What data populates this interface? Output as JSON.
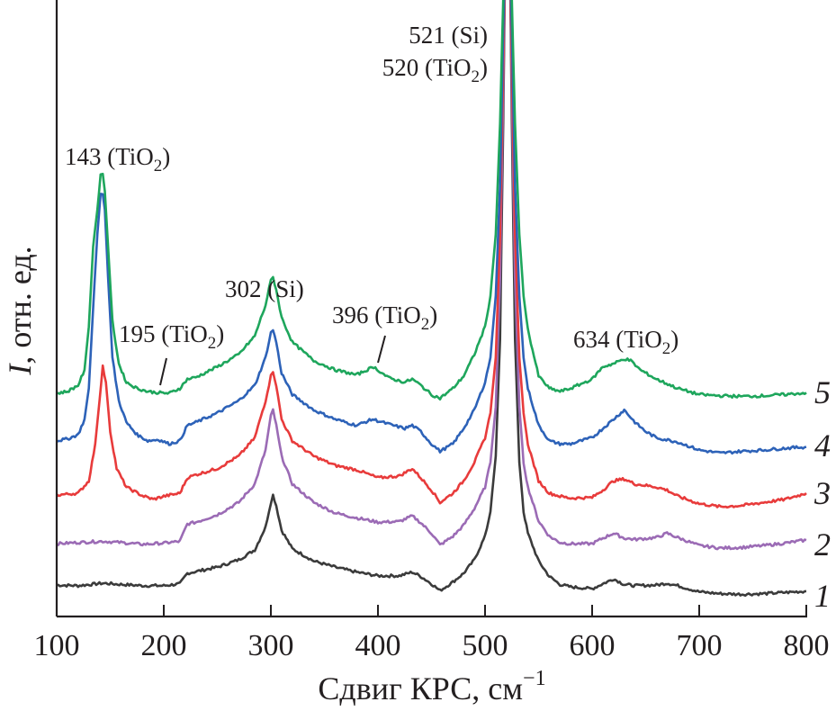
{
  "chart_data": {
    "type": "line",
    "title": "",
    "xlabel": "Сдвиг КРС, см",
    "xlabel_superscript": "−1",
    "ylabel_italic": "I",
    "ylabel": ", отн. ед.",
    "xlim": [
      100,
      800
    ],
    "ylim": [
      0,
      100
    ],
    "xticks": [
      100,
      200,
      300,
      400,
      500,
      600,
      700,
      800
    ],
    "xtick_labels": [
      "100",
      "200",
      "300",
      "400",
      "500",
      "600",
      "700",
      "800"
    ],
    "yticks": [],
    "grid": false,
    "legend": "curve numbers at right end of each curve",
    "series": [
      {
        "name": "1",
        "color": "#3b3b3b",
        "x": [
          100,
          120,
          143,
          160,
          180,
          200,
          215,
          222,
          230,
          250,
          270,
          285,
          295,
          300,
          302,
          305,
          310,
          320,
          340,
          360,
          380,
          400,
          420,
          432,
          440,
          450,
          458,
          470,
          480,
          490,
          500,
          505,
          510,
          514,
          517,
          519,
          521,
          523,
          525,
          528,
          532,
          536,
          540,
          550,
          560,
          570,
          580,
          600,
          610,
          620,
          630,
          640,
          660,
          670,
          680,
          700,
          720,
          740,
          760,
          780,
          800
        ],
        "y": [
          5.1,
          5.0,
          5.4,
          5.2,
          5.0,
          5.0,
          5.3,
          7.0,
          7.3,
          8.0,
          9.2,
          10.8,
          14.5,
          18.5,
          19.7,
          18.0,
          14.0,
          11.0,
          9.0,
          8.0,
          7.2,
          6.6,
          6.6,
          7.2,
          6.5,
          5.3,
          4.2,
          5.6,
          7.0,
          9.2,
          13.0,
          17.0,
          26.0,
          45.0,
          80.0,
          110,
          130,
          110,
          80.0,
          45.0,
          25.0,
          17.0,
          13.5,
          9.0,
          6.5,
          5.2,
          4.8,
          4.5,
          5.3,
          6.1,
          5.2,
          5.0,
          5.1,
          5.4,
          5.0,
          4.0,
          3.7,
          3.6,
          3.7,
          3.9,
          4.1
        ]
      },
      {
        "name": "2",
        "color": "#9b6bb5",
        "x": [
          100,
          120,
          143,
          160,
          180,
          200,
          215,
          222,
          230,
          250,
          270,
          285,
          295,
          300,
          302,
          305,
          310,
          320,
          340,
          360,
          380,
          400,
          420,
          432,
          440,
          450,
          458,
          470,
          480,
          490,
          500,
          505,
          510,
          514,
          517,
          519,
          521,
          523,
          525,
          528,
          532,
          536,
          540,
          550,
          560,
          570,
          580,
          600,
          610,
          620,
          630,
          640,
          660,
          670,
          680,
          700,
          720,
          740,
          760,
          780,
          800
        ],
        "y": [
          11.8,
          12.0,
          12.2,
          12.0,
          11.7,
          11.9,
          12.2,
          15.0,
          15.3,
          16.5,
          18.5,
          21.5,
          27.0,
          32.5,
          33.5,
          31.0,
          26.0,
          21.5,
          18.5,
          16.8,
          16.0,
          15.3,
          15.4,
          16.3,
          15.2,
          13.5,
          11.6,
          13.0,
          14.8,
          17.5,
          21.0,
          25.0,
          34.0,
          55.0,
          85.0,
          110,
          130,
          110,
          85.0,
          55.0,
          34.0,
          25.0,
          21.0,
          15.5,
          13.0,
          12.0,
          11.8,
          11.8,
          12.7,
          13.5,
          12.7,
          12.5,
          12.8,
          13.5,
          12.8,
          11.5,
          11.1,
          11.2,
          11.5,
          11.9,
          12.4
        ]
      },
      {
        "name": "3",
        "color": "#e83b3b",
        "x": [
          100,
          120,
          130,
          136,
          140,
          143,
          146,
          150,
          156,
          165,
          180,
          190,
          200,
          215,
          222,
          230,
          250,
          270,
          285,
          295,
          300,
          302,
          305,
          310,
          320,
          340,
          360,
          380,
          400,
          420,
          432,
          440,
          450,
          458,
          470,
          480,
          490,
          500,
          505,
          510,
          514,
          517,
          519,
          521,
          523,
          525,
          528,
          532,
          536,
          540,
          550,
          560,
          570,
          580,
          600,
          610,
          620,
          630,
          640,
          660,
          670,
          680,
          700,
          720,
          740,
          760,
          780,
          800
        ],
        "y": [
          19.7,
          20.0,
          22.0,
          28.0,
          35.0,
          40.5,
          38.0,
          30.0,
          24.0,
          21.0,
          19.6,
          19.0,
          19.5,
          20.0,
          22.5,
          23.0,
          24.0,
          26.0,
          29.0,
          35.0,
          39.0,
          39.8,
          37.5,
          32.0,
          28.5,
          26.0,
          24.5,
          23.8,
          22.5,
          22.8,
          24.0,
          22.5,
          20.5,
          18.5,
          20.0,
          22.0,
          25.0,
          29.0,
          33.0,
          42.0,
          62.0,
          90.0,
          110,
          130,
          110,
          90.0,
          62.0,
          42.0,
          33.0,
          28.0,
          22.0,
          20.0,
          19.5,
          19.2,
          19.3,
          20.5,
          22.0,
          22.3,
          21.5,
          21.0,
          20.5,
          19.5,
          18.3,
          17.8,
          18.0,
          18.5,
          19.0,
          20.0
        ]
      },
      {
        "name": "4",
        "color": "#2d62b8",
        "x": [
          100,
          110,
          120,
          126,
          130,
          134,
          138,
          141,
          143,
          145,
          148,
          152,
          158,
          165,
          175,
          185,
          195,
          205,
          215,
          222,
          230,
          250,
          270,
          285,
          295,
          300,
          302,
          305,
          310,
          320,
          340,
          360,
          380,
          395,
          410,
          425,
          432,
          440,
          450,
          458,
          470,
          480,
          490,
          500,
          505,
          510,
          514,
          517,
          519,
          521,
          523,
          525,
          528,
          532,
          536,
          540,
          550,
          560,
          570,
          580,
          600,
          610,
          620,
          630,
          640,
          650,
          660,
          680,
          700,
          720,
          740,
          760,
          780,
          800
        ],
        "y": [
          28.5,
          28.8,
          29.5,
          32.0,
          37.0,
          50.0,
          62.0,
          68.5,
          68.5,
          66.0,
          55.0,
          42.0,
          35.0,
          31.5,
          29.5,
          28.5,
          28.7,
          28.0,
          28.5,
          31.0,
          31.5,
          33.0,
          35.0,
          37.5,
          42.0,
          46.0,
          46.5,
          44.5,
          39.5,
          36.0,
          33.5,
          32.0,
          31.0,
          32.0,
          31.2,
          30.5,
          31.0,
          30.0,
          28.0,
          26.8,
          28.0,
          30.5,
          33.5,
          38.0,
          42.0,
          52.0,
          70.0,
          95.0,
          110,
          130,
          110,
          95.0,
          70.0,
          52.0,
          42.0,
          37.0,
          31.0,
          28.5,
          28.0,
          28.0,
          29.0,
          30.5,
          32.0,
          33.5,
          31.5,
          30.0,
          29.0,
          28.3,
          27.0,
          26.5,
          26.8,
          27.0,
          27.3,
          27.5
        ]
      },
      {
        "name": "5",
        "color": "#1ea65c",
        "x": [
          100,
          110,
          120,
          126,
          130,
          134,
          138,
          141,
          143,
          145,
          148,
          152,
          158,
          165,
          175,
          185,
          195,
          205,
          215,
          222,
          230,
          250,
          270,
          285,
          295,
          300,
          302,
          305,
          310,
          320,
          340,
          360,
          380,
          396,
          410,
          425,
          432,
          440,
          450,
          458,
          470,
          480,
          490,
          500,
          505,
          510,
          514,
          517,
          519,
          521,
          523,
          525,
          528,
          532,
          536,
          540,
          550,
          560,
          570,
          580,
          600,
          610,
          620,
          630,
          636,
          645,
          660,
          680,
          700,
          720,
          740,
          760,
          780,
          800
        ],
        "y": [
          36.2,
          36.5,
          37.5,
          40.0,
          47.0,
          60.0,
          66.0,
          71.5,
          71.8,
          69.0,
          60.0,
          48.0,
          41.0,
          38.0,
          37.0,
          36.5,
          36.3,
          36.2,
          37.0,
          38.5,
          38.8,
          40.5,
          42.5,
          45.5,
          50.5,
          54.5,
          55.0,
          53.0,
          48.5,
          44.5,
          41.5,
          40.0,
          39.2,
          40.5,
          38.7,
          38.0,
          38.5,
          37.5,
          36.0,
          35.4,
          37.0,
          39.0,
          42.5,
          47.0,
          52.0,
          62.0,
          80.0,
          100,
          115,
          130,
          115,
          100,
          80.0,
          62.0,
          52.0,
          46.5,
          39.0,
          37.0,
          36.5,
          37.0,
          38.5,
          40.5,
          41.0,
          41.8,
          41.5,
          40.0,
          38.5,
          37.0,
          36.0,
          35.8,
          35.7,
          35.8,
          36.0,
          36.3
        ]
      }
    ],
    "annotations": [
      {
        "text": "143 (TiO",
        "sub": "2",
        "tail": ")",
        "x": 143
      },
      {
        "text": "195 (TiO",
        "sub": "2",
        "tail": ")",
        "x": 195
      },
      {
        "text": "302 (Si)",
        "sub": "",
        "tail": "",
        "x": 302
      },
      {
        "text": "396 (TiO",
        "sub": "2",
        "tail": ")",
        "x": 396
      },
      {
        "text": "521 (Si)",
        "sub": "",
        "tail": "",
        "x": 521
      },
      {
        "text": "520 (TiO",
        "sub": "2",
        "tail": ")",
        "x": 520
      },
      {
        "text": "634 (TiO",
        "sub": "2",
        "tail": ")",
        "x": 634
      }
    ],
    "curve_labels": [
      "1",
      "2",
      "3",
      "4",
      "5"
    ]
  }
}
